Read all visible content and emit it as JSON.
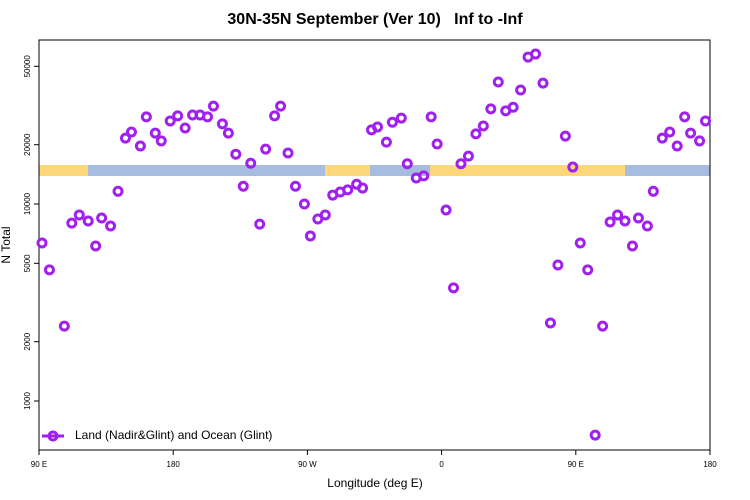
{
  "chart_data": {
    "type": "scatter",
    "title": "30N-35N September (Ver 10)   Inf to -Inf",
    "x_label": "Longitude (deg E)",
    "y_label": "N Total",
    "log_y": true,
    "legend_position": "lower left",
    "xlim": [
      90,
      540
    ],
    "ylim": [
      564,
      68000
    ],
    "xticks": [
      {
        "value": 90,
        "label": "90 E"
      },
      180,
      {
        "value": 270,
        "label": "90 W"
      },
      {
        "value": 360,
        "label": "0"
      },
      {
        "value": 450,
        "label": "90 E"
      },
      {
        "value": 540,
        "label": "180"
      }
    ],
    "yticks": [
      1000,
      2000,
      5000,
      10000,
      20000,
      50000
    ],
    "series": [
      {
        "name": "Land (Nadir&Glint) and Ocean (Glint)",
        "color": "#a020f0",
        "x": [
          92,
          97,
          107,
          112,
          117,
          123,
          128,
          132,
          138,
          143,
          148,
          152,
          158,
          162,
          168,
          172,
          178,
          183,
          188,
          193,
          198,
          203,
          207,
          213,
          217,
          222,
          227,
          232,
          238,
          242,
          248,
          252,
          257,
          262,
          268,
          272,
          277,
          282,
          287,
          292,
          297,
          303,
          307,
          313,
          317,
          323,
          327,
          333,
          337,
          343,
          348,
          353,
          357,
          363,
          368,
          373,
          378,
          383,
          388,
          393,
          398,
          403,
          408,
          413,
          418,
          423,
          428,
          433,
          438,
          443,
          448,
          453,
          458,
          463,
          468,
          473,
          478,
          483,
          488,
          492,
          498,
          502,
          508,
          513,
          518,
          523,
          527,
          533,
          537
        ],
        "values": [
          6340,
          4630,
          2400,
          8000,
          8800,
          8200,
          6120,
          8490,
          7730,
          11600,
          21600,
          23200,
          19700,
          27700,
          22900,
          20900,
          26400,
          28000,
          24300,
          28300,
          28300,
          27700,
          31400,
          25500,
          22900,
          17900,
          12300,
          16100,
          7900,
          19000,
          28000,
          31400,
          18150,
          12300,
          10000,
          6880,
          8390,
          8800,
          11100,
          11500,
          11800,
          12600,
          12050,
          23800,
          24600,
          20600,
          26000,
          27300,
          16000,
          13550,
          13900,
          27700,
          20160,
          9320,
          3750,
          16000,
          17500,
          22700,
          24900,
          30400,
          41600,
          29700,
          31000,
          37900,
          55700,
          57700,
          41100,
          2490,
          4900,
          22100,
          15400,
          6340,
          4630,
          671,
          2400,
          8100,
          8800,
          8200,
          6120,
          8490,
          7730,
          11600,
          21600,
          23200,
          19700,
          27700,
          22900,
          20900,
          26400
        ]
      }
    ]
  }
}
